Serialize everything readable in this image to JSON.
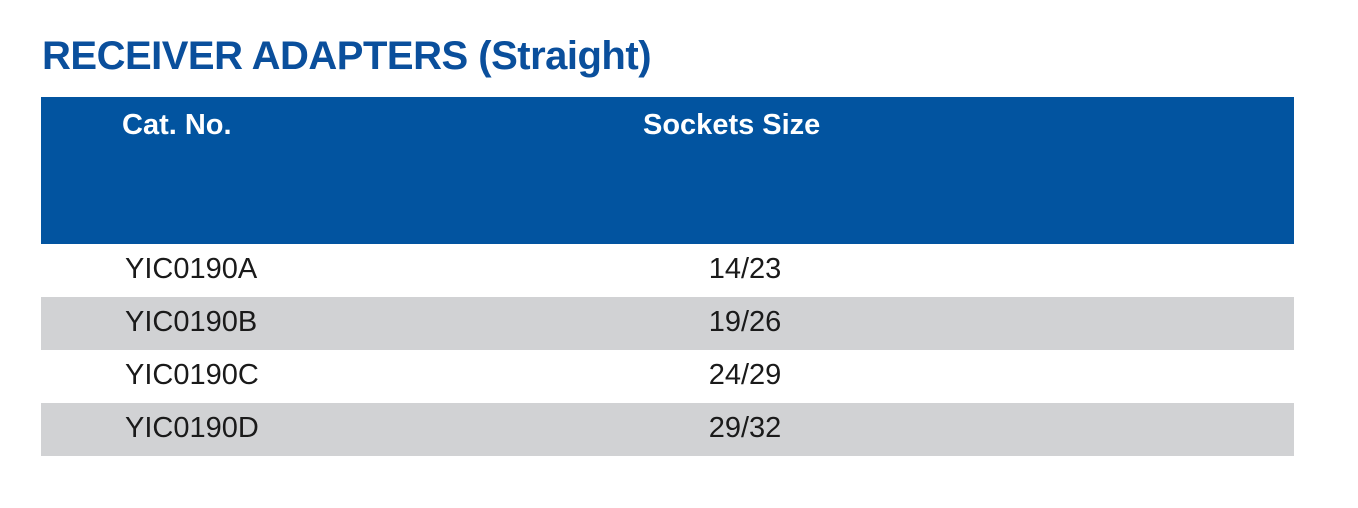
{
  "title": "RECEIVER ADAPTERS (Straight)",
  "table": {
    "headers": {
      "cat_no": "Cat. No.",
      "sockets_size": "Sockets Size"
    },
    "rows": [
      {
        "cat_no": "YIC0190A",
        "sockets_size": "14/23"
      },
      {
        "cat_no": "YIC0190B",
        "sockets_size": "19/26"
      },
      {
        "cat_no": "YIC0190C",
        "sockets_size": "24/29"
      },
      {
        "cat_no": "YIC0190D",
        "sockets_size": "29/32"
      }
    ]
  },
  "colors": {
    "title": "#0a4f9c",
    "header_bg": "#0254a0",
    "header_text": "#ffffff",
    "stripe": "#d1d2d4",
    "body_text": "#1a1a1a"
  }
}
